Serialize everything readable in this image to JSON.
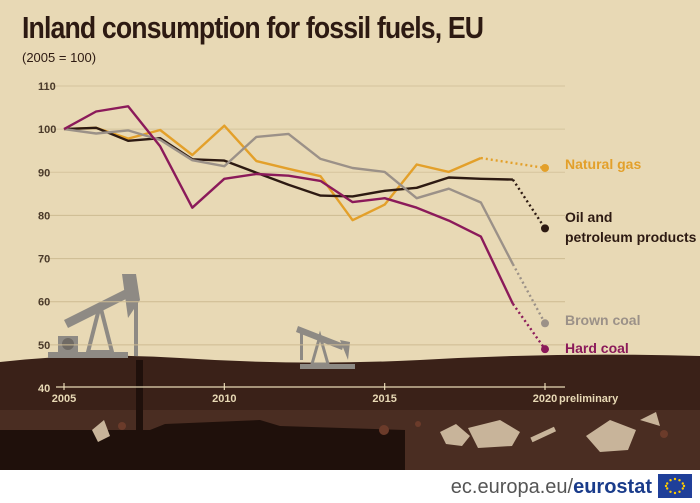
{
  "title": "Inland consumption for fossil fuels, EU",
  "subtitle": "(2005 = 100)",
  "footer": {
    "site": "ec.europa.eu/",
    "brand": "eurostat"
  },
  "colors": {
    "background": "#e8d9b5",
    "ground": "#3a2118",
    "natural_gas": "#e3a02a",
    "oil": "#2d1a12",
    "brown_coal": "#9b9188",
    "hard_coal": "#8b1a5a"
  },
  "chart_data": {
    "type": "line",
    "x": [
      2005,
      2006,
      2007,
      2008,
      2009,
      2010,
      2011,
      2012,
      2013,
      2014,
      2015,
      2016,
      2017,
      2018,
      2019,
      2020
    ],
    "x_ticks": [
      "2005",
      "2010",
      "2015",
      "2020"
    ],
    "x_note": "preliminary",
    "y_ticks": [
      "40",
      "50",
      "60",
      "70",
      "80",
      "90",
      "100",
      "110"
    ],
    "ylim": [
      40,
      110
    ],
    "grid": true,
    "dotted_last_segment": true,
    "series": [
      {
        "name": "Natural gas",
        "label_lines": [
          "Natural gas"
        ],
        "color": "#e3a02a",
        "values": [
          100,
          100.3,
          97.8,
          99.8,
          94,
          100.8,
          92.6,
          90.8,
          89.1,
          78.9,
          82.5,
          91.8,
          90.1,
          93.3,
          null,
          91.0
        ]
      },
      {
        "name": "Oil and petroleum products",
        "label_lines": [
          "Oil and",
          "petroleum products"
        ],
        "color": "#2d1a12",
        "values": [
          100,
          100.3,
          97.3,
          97.9,
          93.0,
          92.7,
          89.9,
          87.1,
          84.6,
          84.4,
          85.7,
          86.4,
          88.8,
          88.5,
          88.3,
          77.0
        ]
      },
      {
        "name": "Brown coal",
        "label_lines": [
          "Brown coal"
        ],
        "color": "#9b9188",
        "values": [
          100,
          99.0,
          99.7,
          97.5,
          92.8,
          91.4,
          98.2,
          98.9,
          93.1,
          91.0,
          90.1,
          84.0,
          86.2,
          83.0,
          68.7,
          55.0
        ]
      },
      {
        "name": "Hard coal",
        "label_lines": [
          "Hard coal"
        ],
        "color": "#8b1a5a",
        "values": [
          100,
          104.1,
          105.3,
          96.0,
          81.8,
          88.5,
          89.6,
          89.2,
          88.0,
          83.1,
          84.0,
          81.8,
          78.8,
          75.1,
          59.5,
          49.0
        ]
      }
    ]
  }
}
